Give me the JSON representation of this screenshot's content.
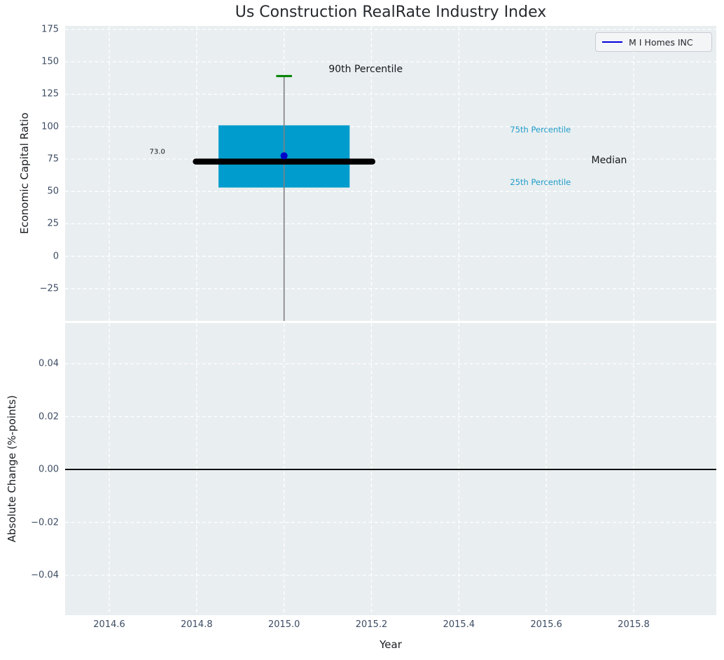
{
  "title": "Us Construction RealRate Industry Index",
  "legend": {
    "label": "M I Homes INC",
    "line_color": "#0000dd"
  },
  "colors": {
    "figure_background": "#ffffff",
    "axes_background": "#e9eef0",
    "grid": "#ffffff",
    "box_fill": "#009ccd",
    "median_line": "#000000",
    "whisker": "#808080",
    "cap_90th": "#098609",
    "company_point": "#0000cc",
    "percentile_label": "#1f9dca",
    "tick_label": "#3d4c63",
    "zero_line": "#000000"
  },
  "chart_data": [
    {
      "type": "boxplot",
      "panel": "top",
      "title": "Us Construction RealRate Industry Index",
      "ylabel": "Economic Capital Ratio",
      "xlabel": "",
      "grid": "on",
      "legend_position": "upper right",
      "xlim": [
        2014.499,
        2015.989
      ],
      "ylim": [
        -49.9,
        177.7
      ],
      "ytick_values": [
        175,
        150,
        125,
        100,
        75,
        50,
        25,
        0,
        -25
      ],
      "ytick_labels": [
        "175",
        "150",
        "125",
        "100",
        "75",
        "50",
        "25",
        "0",
        "−25"
      ],
      "xtick_values": [
        2014.6,
        2014.8,
        2015.0,
        2015.2,
        2015.4,
        2015.6,
        2015.8
      ],
      "xtick_labels": [],
      "box": {
        "center_x": 2015.0,
        "q1": 53.0,
        "median": 73.0,
        "q3": 101.0,
        "p90": 139.0,
        "whisker_low_clipped": true,
        "box_half_width": 0.15,
        "median_half_width": 0.202,
        "cap_half_width": 0.018
      },
      "company_point": {
        "series": "M I Homes INC",
        "x": 2015.0,
        "y": 77.5
      },
      "annotations": [
        {
          "text": "90th Percentile",
          "x": 2015.102,
          "y": 144.3,
          "ha": "left",
          "kind": "major"
        },
        {
          "text": "73.0",
          "x": 2014.71,
          "y": 80.5,
          "ha": "center",
          "kind": "value"
        },
        {
          "text": "75th Percentile",
          "x": 2015.517,
          "y": 97.7,
          "ha": "left",
          "kind": "minor"
        },
        {
          "text": "Median",
          "x": 2015.703,
          "y": 73.8,
          "ha": "left",
          "kind": "major"
        },
        {
          "text": "25th Percentile",
          "x": 2015.517,
          "y": 57.2,
          "ha": "left",
          "kind": "minor"
        }
      ]
    },
    {
      "type": "line",
      "panel": "bottom",
      "ylabel": "Absolute Change (%-points)",
      "xlabel": "Year",
      "grid": "on",
      "xlim": [
        2014.499,
        2015.989
      ],
      "ylim": [
        -0.0551,
        0.0554
      ],
      "ytick_values": [
        0.04,
        0.02,
        0.0,
        -0.02,
        -0.04
      ],
      "ytick_labels": [
        "0.04",
        "0.02",
        "0.00",
        "−0.02",
        "−0.04"
      ],
      "xtick_values": [
        2014.6,
        2014.8,
        2015.0,
        2015.2,
        2015.4,
        2015.6,
        2015.8
      ],
      "xtick_labels": [
        "2014.6",
        "2014.8",
        "2015.0",
        "2015.2",
        "2015.4",
        "2015.6",
        "2015.8"
      ],
      "zero_line": 0.0,
      "series": []
    }
  ]
}
